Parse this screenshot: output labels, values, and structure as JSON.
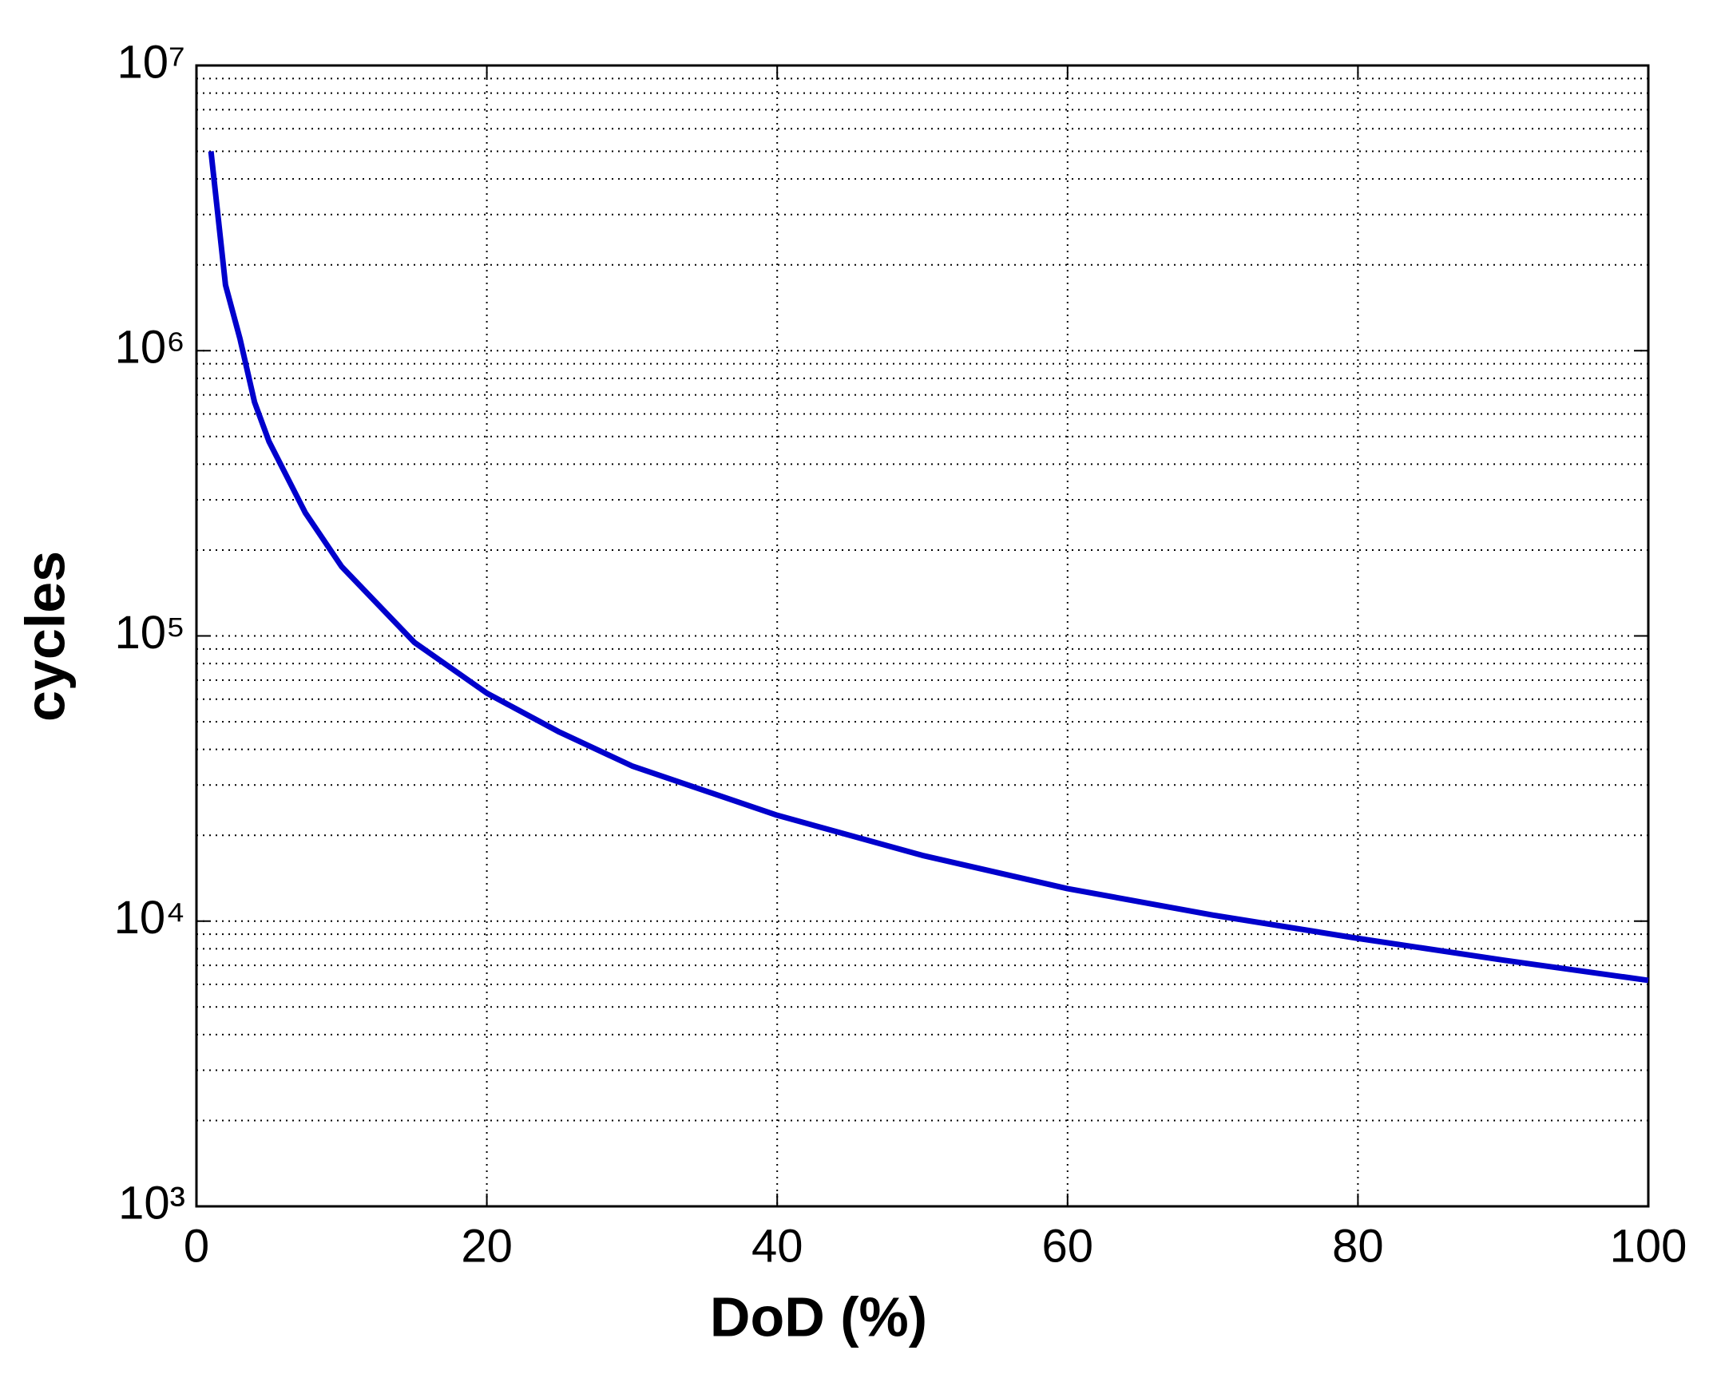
{
  "chart_data": {
    "type": "line",
    "x_label": "DoD (%)",
    "y_label": "cycles",
    "y_scale": "log",
    "grid": true,
    "minor_grid": true,
    "xlim": [
      0,
      100
    ],
    "xticks": [
      0,
      20,
      40,
      60,
      80,
      100
    ],
    "ylim": [
      1000,
      10000000
    ],
    "yticks": [
      {
        "value": 1000,
        "label": "10³"
      },
      {
        "value": 10000,
        "label": "10⁴"
      },
      {
        "value": 100000,
        "label": "10⁵"
      },
      {
        "value": 1000000,
        "label": "10⁶"
      },
      {
        "value": 10000000,
        "label": "10⁷"
      }
    ],
    "x": [
      1,
      2,
      3,
      4,
      5,
      7.5,
      10,
      15,
      20,
      25,
      30,
      40,
      50,
      60,
      70,
      80,
      90,
      100
    ],
    "series": [
      {
        "color": "#0000cc",
        "values": [
          5000000,
          1700000,
          1100000,
          660000,
          480000,
          270000,
          175000,
          95000,
          63000,
          46000,
          35000,
          23500,
          17000,
          13000,
          10500,
          8700,
          7300,
          6200
        ]
      }
    ]
  }
}
